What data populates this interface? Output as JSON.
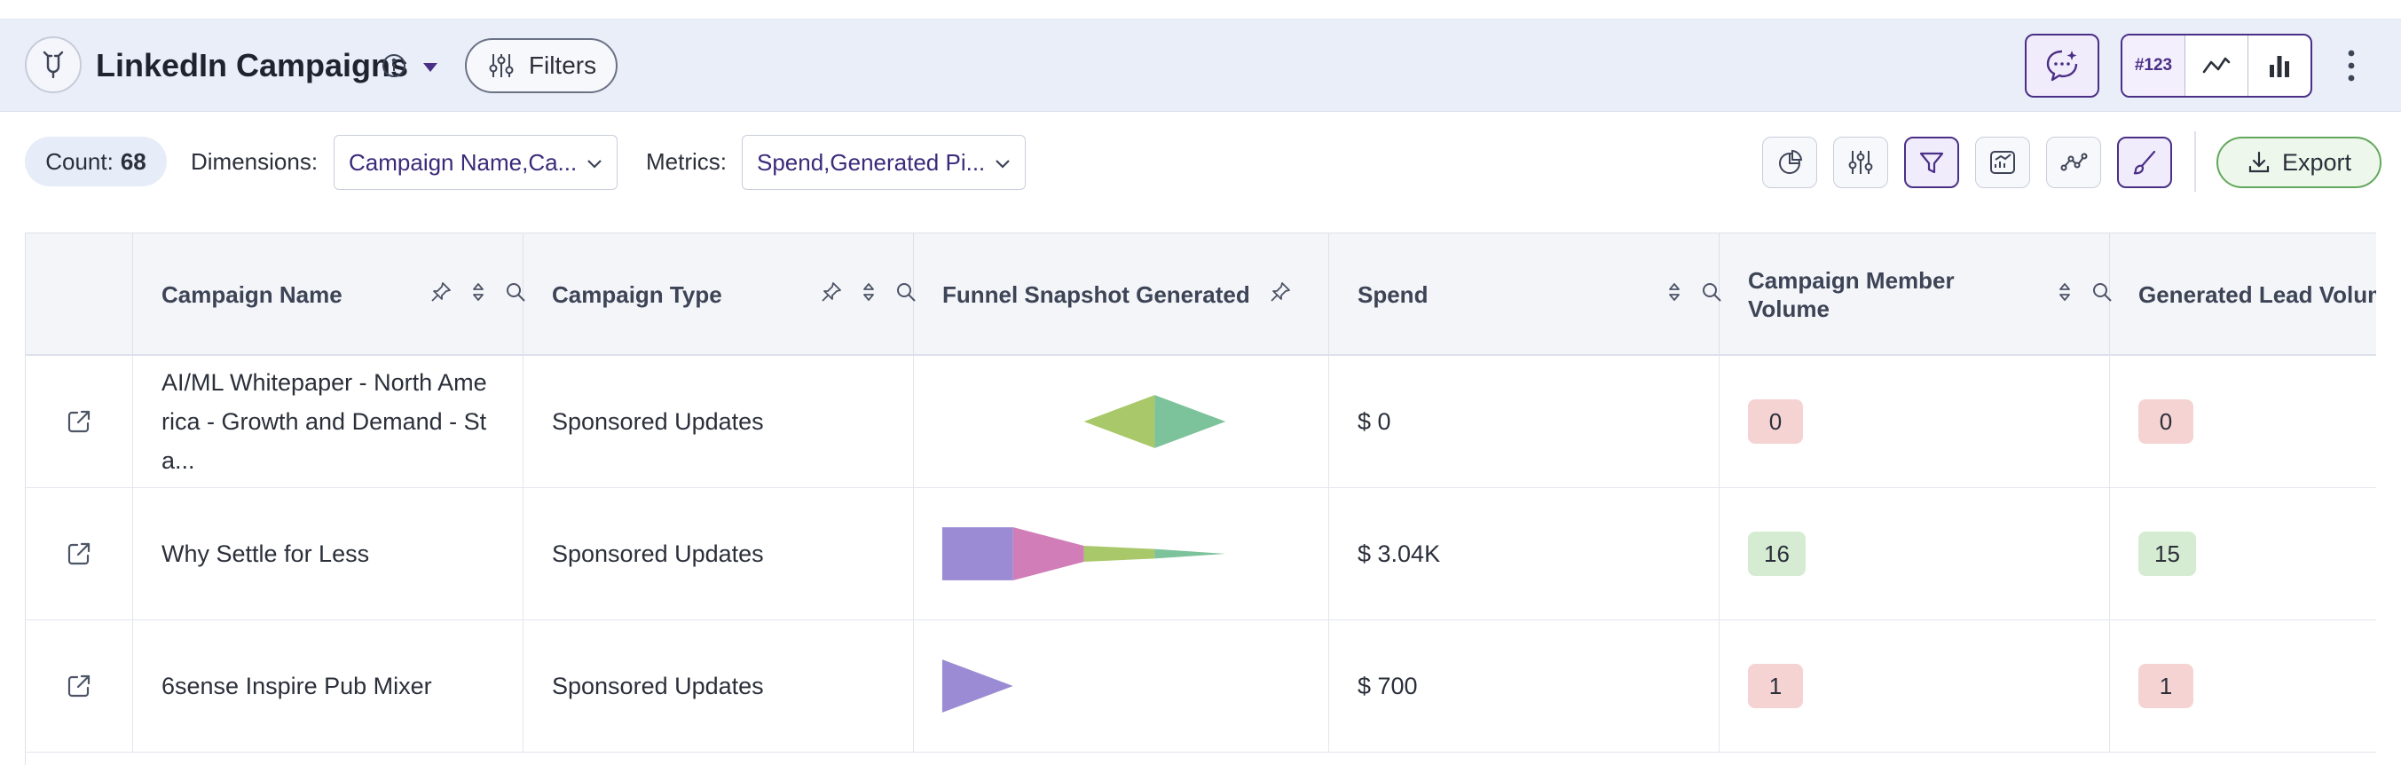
{
  "header": {
    "title": "LinkedIn Campaigns",
    "filters_label": "Filters",
    "view_toggle": [
      "#123",
      "line-chart-icon",
      "bar-chart-icon"
    ]
  },
  "toolbar": {
    "count_label": "Count:",
    "count_value": "68",
    "dimensions_label": "Dimensions:",
    "dimensions_value": "Campaign Name,Ca...",
    "metrics_label": "Metrics:",
    "metrics_value": "Spend,Generated Pi...",
    "tool_icons": [
      "pie-chart-icon",
      "sliders-icon",
      "funnel-icon",
      "chart-settings-icon",
      "trend-icon",
      "brush-icon"
    ],
    "export_label": "Export"
  },
  "table": {
    "columns": [
      {
        "label": ""
      },
      {
        "label": "Campaign Name"
      },
      {
        "label": "Campaign Type"
      },
      {
        "label": "Funnel Snapshot Generated"
      },
      {
        "label": "Spend"
      },
      {
        "label": "Campaign Member Volume"
      },
      {
        "label": "Generated Lead Volum"
      }
    ],
    "rows": [
      {
        "campaign_name": "AI/ML Whitepaper - North America - Growth and Demand - Sta...",
        "campaign_type": "Sponsored Updates",
        "funnel": [
          0,
          0,
          1,
          1
        ],
        "spend": "$ 0",
        "member_volume": "0",
        "lead_volume": "0"
      },
      {
        "campaign_name": "Why Settle for Less",
        "campaign_type": "Sponsored Updates",
        "funnel": [
          1,
          1,
          0.3,
          0.18
        ],
        "spend": "$ 3.04K",
        "member_volume": "16",
        "lead_volume": "15"
      },
      {
        "campaign_name": "6sense Inspire Pub Mixer",
        "campaign_type": "Sponsored Updates",
        "funnel": [
          1,
          0,
          0,
          0
        ],
        "spend": "$ 700",
        "member_volume": "1",
        "lead_volume": "1"
      }
    ]
  },
  "colors": {
    "accent": "#4a2f86",
    "funnel_stage_1": "#9b8bd4",
    "funnel_stage_2": "#d07db8",
    "funnel_stage_3": "#a8c86a",
    "funnel_stage_4": "#7cc29a",
    "badge_red": "#f6d3d3",
    "badge_green": "#d5ecd2"
  }
}
